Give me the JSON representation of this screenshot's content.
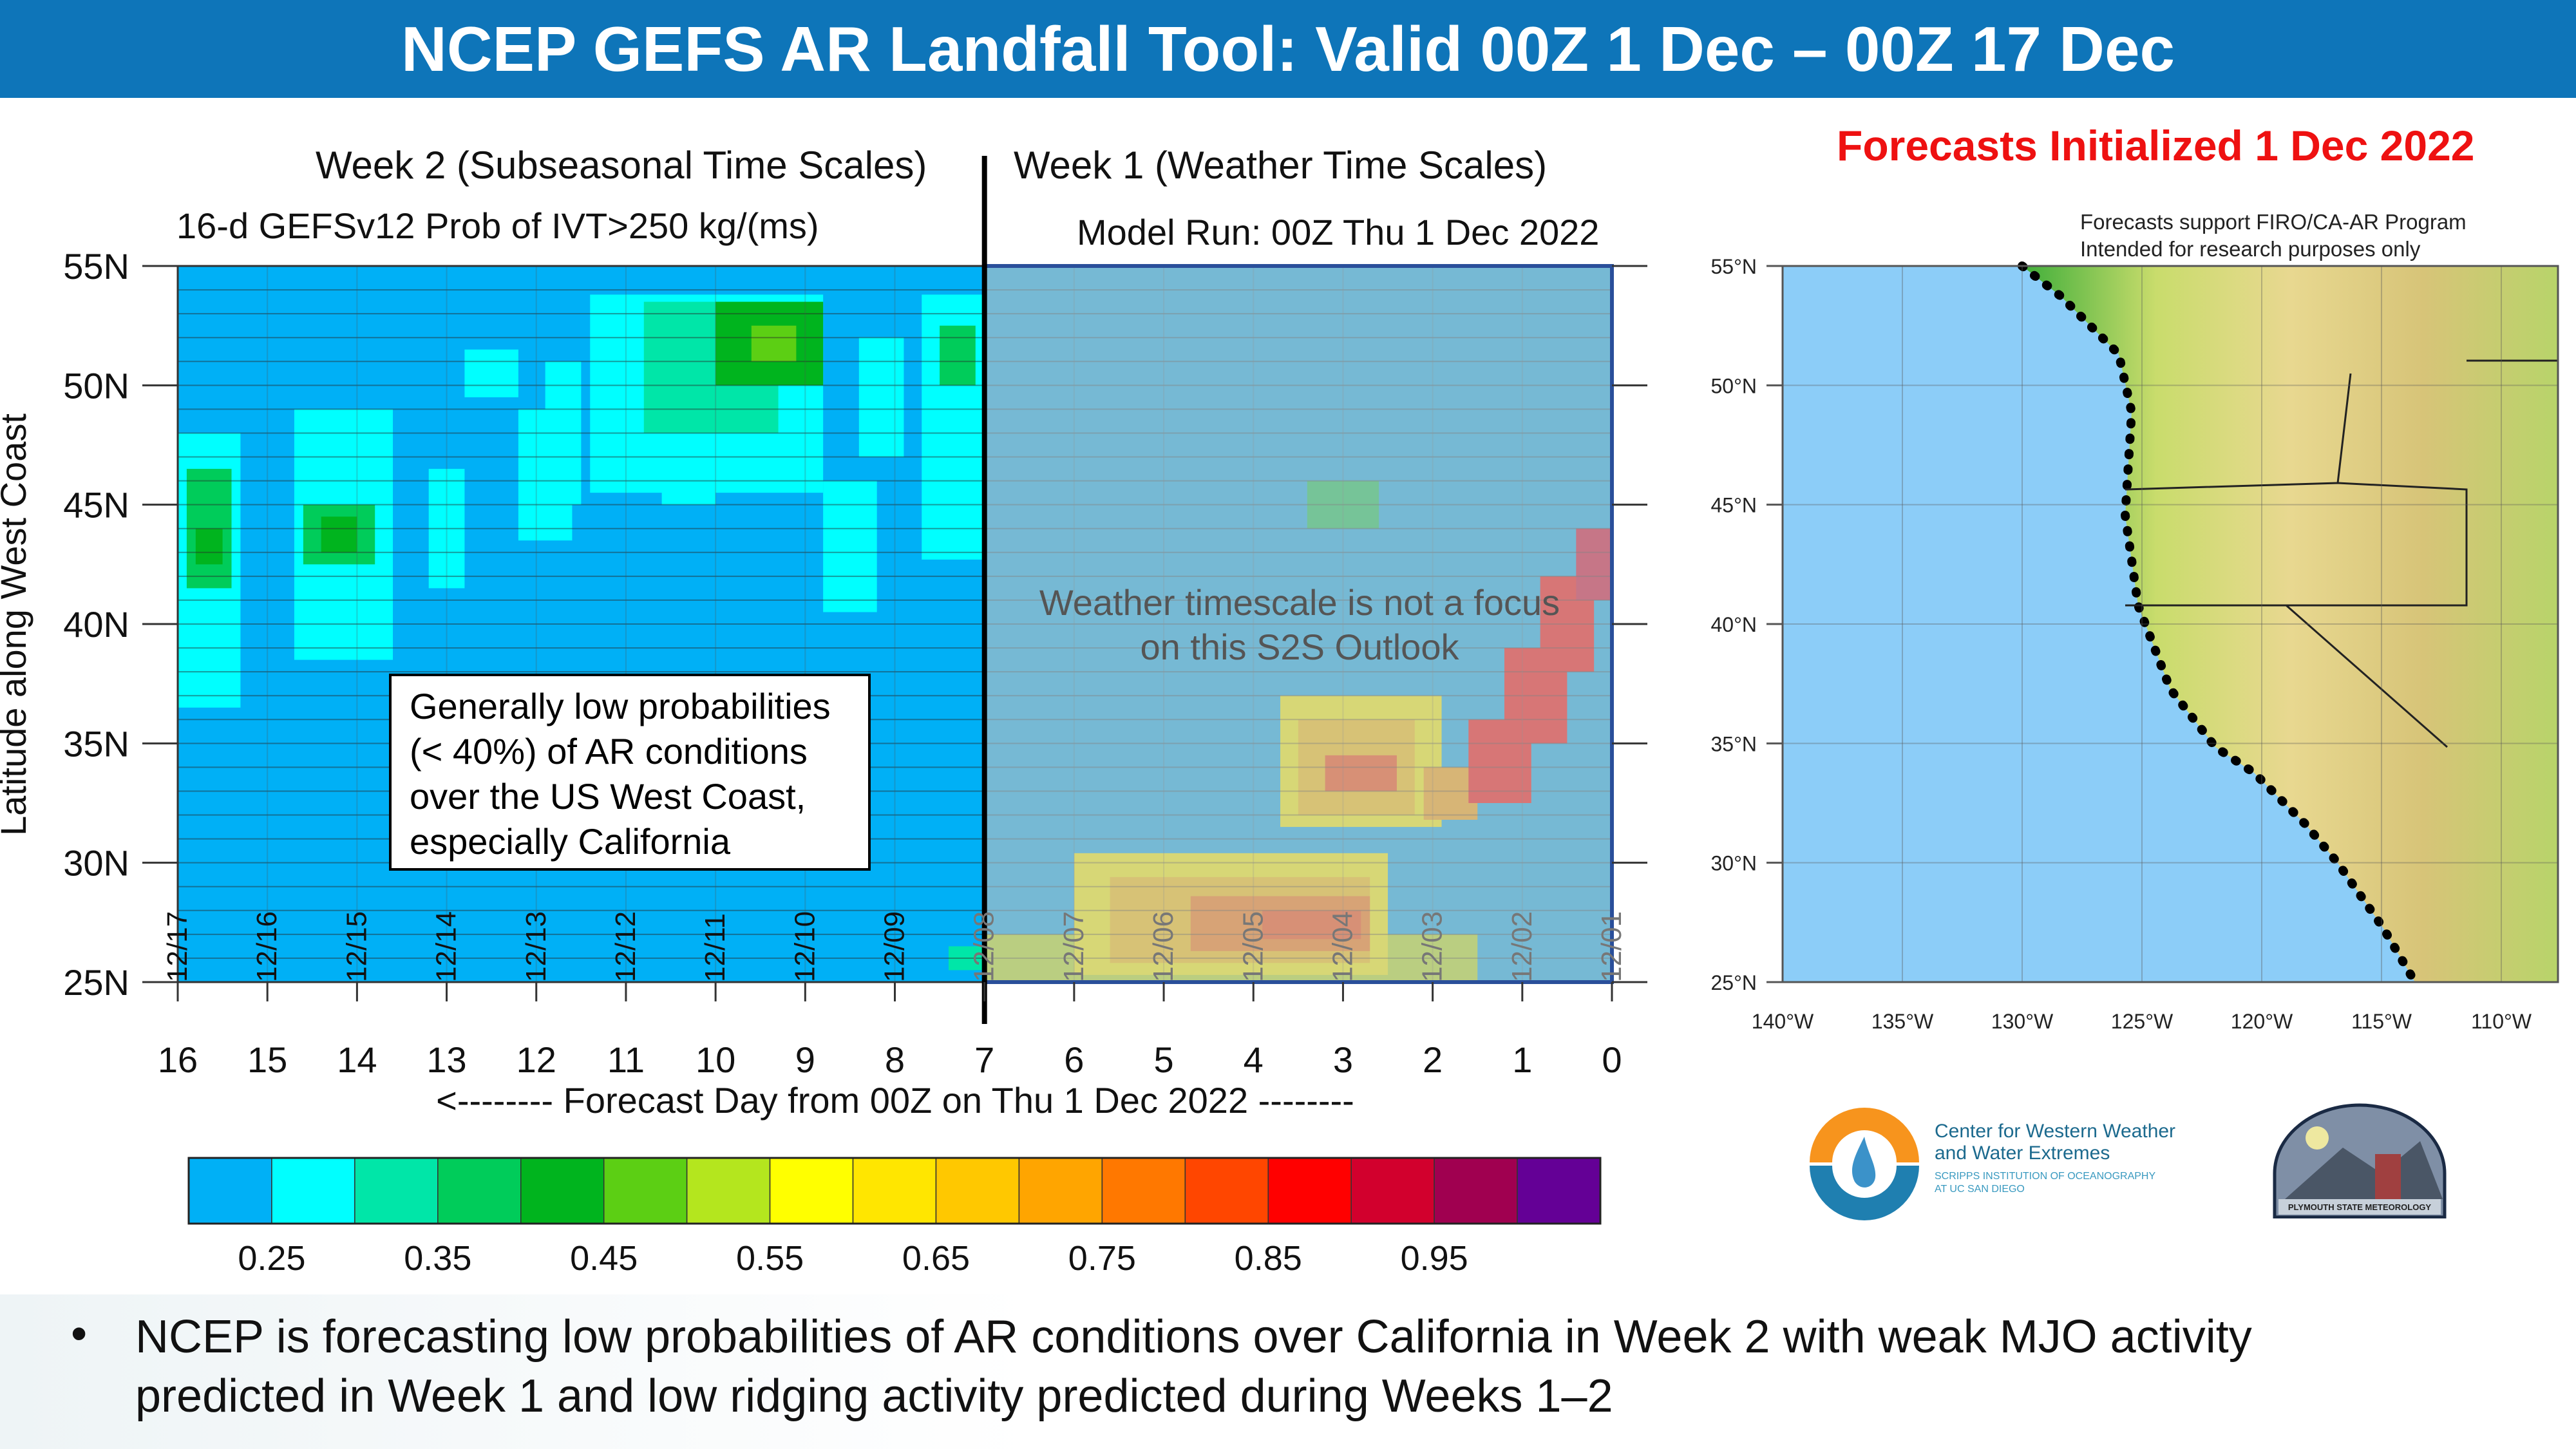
{
  "header": {
    "title": "NCEP GEFS AR Landfall Tool: Valid 00Z 1 Dec – 00Z 17 Dec"
  },
  "init_label": "Forecasts Initialized 1 Dec 2022",
  "left_panel": {
    "week2_title": "Week 2 (Subseasonal Time Scales)",
    "week1_title": "Week 1 (Weather Time Scales)",
    "subtitle": "16-d GEFSv12 Prob of IVT>250 kg/(ms)",
    "model_run": "Model Run: 00Z Thu 1 Dec 2022",
    "week1_note_1": "Weather timescale is not a focus",
    "week1_note_2": "on this S2S Outlook",
    "annotation": "Generally low probabilities (< 40%) of AR conditions over the US West Coast, especially California"
  },
  "chart_data": {
    "type": "heatmap",
    "title": "16-d GEFSv12 Prob of IVT>250 kg/(ms)",
    "xlabel": "<-------- Forecast Day from 00Z on Thu 1 Dec 2022 --------",
    "ylabel": "Latitude along West Coast",
    "xlim": [
      16,
      0
    ],
    "ylim": [
      25,
      55
    ],
    "x_ticks": [
      "16",
      "15",
      "14",
      "13",
      "12",
      "11",
      "10",
      "9",
      "8",
      "7",
      "6",
      "5",
      "4",
      "3",
      "2",
      "1",
      "0"
    ],
    "y_ticks": [
      "25N",
      "30N",
      "35N",
      "40N",
      "45N",
      "50N",
      "55N"
    ],
    "date_labels": [
      "12/17",
      "12/16",
      "12/15",
      "12/14",
      "12/13",
      "12/12",
      "12/11",
      "12/10",
      "12/09",
      "12/08",
      "12/07",
      "12/06",
      "12/05",
      "12/04",
      "12/03",
      "12/02",
      "12/01"
    ],
    "colorbar": {
      "levels": [
        0.25,
        0.3,
        0.35,
        0.4,
        0.45,
        0.5,
        0.55,
        0.6,
        0.65,
        0.7,
        0.75,
        0.8,
        0.85,
        0.9,
        0.95,
        1.0
      ],
      "labels": [
        "0.25",
        "0.35",
        "0.45",
        "0.55",
        "0.65",
        "0.75",
        "0.85",
        "0.95"
      ],
      "colors": [
        "#00b0f6",
        "#00ffff",
        "#00e6a8",
        "#00cc5a",
        "#00b41e",
        "#5ccf14",
        "#b4e61e",
        "#ffff00",
        "#ffe600",
        "#ffc800",
        "#ffa500",
        "#ff7800",
        "#ff4600",
        "#ff0000",
        "#d2002d",
        "#a00050",
        "#640096"
      ]
    },
    "patches_note": "[day_start, day_end, lat_start, lat_end, probability]",
    "patches": [
      [
        16,
        15.3,
        36.5,
        48,
        0.27
      ],
      [
        15.9,
        15.4,
        41.5,
        46.5,
        0.37
      ],
      [
        15.8,
        15.5,
        42.5,
        44,
        0.42
      ],
      [
        14.7,
        13.6,
        38.5,
        49,
        0.27
      ],
      [
        14.6,
        13.8,
        42.5,
        45,
        0.37
      ],
      [
        14.4,
        14.0,
        43,
        44.5,
        0.42
      ],
      [
        13.2,
        12.8,
        41.5,
        46.5,
        0.27
      ],
      [
        12.2,
        11.6,
        43.5,
        49,
        0.27
      ],
      [
        11.9,
        11.5,
        45,
        51,
        0.27
      ],
      [
        12.8,
        12.2,
        49.5,
        51.5,
        0.27
      ],
      [
        11.4,
        8.8,
        45.5,
        53.8,
        0.27
      ],
      [
        10.8,
        9.3,
        48,
        53.5,
        0.32
      ],
      [
        10.0,
        8.8,
        50,
        53.5,
        0.42
      ],
      [
        9.6,
        9.1,
        51,
        52.5,
        0.47
      ],
      [
        10.6,
        10.0,
        45,
        48,
        0.27
      ],
      [
        8.8,
        8.2,
        40.5,
        46,
        0.27
      ],
      [
        8.4,
        7.9,
        47,
        52,
        0.27
      ],
      [
        7.7,
        7.0,
        42.7,
        53.8,
        0.27
      ],
      [
        7.5,
        7.1,
        50,
        52.5,
        0.37
      ],
      [
        7.4,
        7.0,
        25.5,
        26.5,
        0.32
      ],
      [
        3.4,
        2.6,
        44,
        46,
        0.37
      ],
      [
        7.0,
        1.5,
        25,
        27,
        0.52
      ],
      [
        6.0,
        2.5,
        25.3,
        30.4,
        0.57
      ],
      [
        5.6,
        2.7,
        25.8,
        29.4,
        0.67
      ],
      [
        4.7,
        2.7,
        26.3,
        28.6,
        0.77
      ],
      [
        3.9,
        2.8,
        26.8,
        28,
        0.82
      ],
      [
        3.7,
        1.9,
        31.5,
        37,
        0.57
      ],
      [
        3.5,
        2.2,
        32,
        36,
        0.67
      ],
      [
        3.2,
        2.4,
        33,
        34.5,
        0.8
      ],
      [
        2.1,
        1.5,
        31.8,
        34,
        0.72
      ],
      [
        1.6,
        0.9,
        32.5,
        36,
        0.85
      ],
      [
        1.2,
        0.5,
        35,
        39,
        0.85
      ],
      [
        0.8,
        0.2,
        38,
        42,
        0.88
      ],
      [
        0.4,
        0,
        41,
        44,
        0.9
      ]
    ]
  },
  "map": {
    "header_1": "Forecasts support FIRO/CA-AR Program",
    "header_2": "Intended for research purposes only",
    "lat_labels": [
      "55°N",
      "50°N",
      "45°N",
      "40°N",
      "35°N",
      "30°N",
      "25°N"
    ],
    "lon_labels": [
      "140°W",
      "135°W",
      "130°W",
      "125°W",
      "120°W",
      "115°W",
      "110°W"
    ]
  },
  "logos": {
    "cw3e_1": "Center for Western Weather",
    "cw3e_2": "and Water Extremes",
    "cw3e_3": "SCRIPPS INSTITUTION OF OCEANOGRAPHY",
    "cw3e_4": "AT UC SAN DIEGO",
    "psu": "PLYMOUTH STATE METEOROLOGY"
  },
  "footer": {
    "bullet": "•",
    "text": "NCEP is forecasting low probabilities of AR conditions over California in Week 2 with weak MJO activity predicted in Week 1 and low ridging activity predicted during Weeks 1–2"
  }
}
